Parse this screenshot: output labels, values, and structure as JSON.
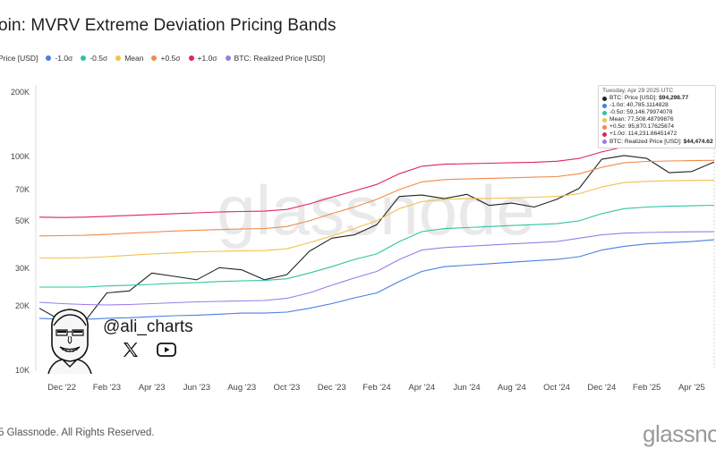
{
  "title": "oin: MVRV Extreme Deviation Pricing Bands",
  "tooltip": {
    "date": "Tuesday, Apr 29 2025 UTC",
    "rows": [
      {
        "label": "BTC: Price [USD]:",
        "value": "$94,298.77",
        "color": "#222222"
      },
      {
        "label": "-1.0σ: 40,785.1114828",
        "value": "",
        "color": "#4a7fe0"
      },
      {
        "label": "-0.5σ: 59,146.79974078",
        "value": "",
        "color": "#2ec4a4"
      },
      {
        "label": "Mean: 77,508.48799876",
        "value": "",
        "color": "#f2c14e"
      },
      {
        "label": "+0.5σ: 95,870.17625674",
        "value": "",
        "color": "#f08a4b"
      },
      {
        "label": "+1.0σ: 114,231.86451472",
        "value": "",
        "color": "#e0245e"
      },
      {
        "label": "BTC: Realized Price [USD]:",
        "value": "$44,474.62",
        "color": "#9b7be8"
      }
    ]
  },
  "watermark": "glassnode",
  "footer": "5 Glassnode. All Rights Reserved.",
  "brand": "glassnode",
  "overlay": {
    "handle": "@ali_charts",
    "icons": [
      "x-icon",
      "youtube-icon"
    ]
  },
  "chart_data": {
    "type": "line",
    "title": "oin: MVRV Extreme Deviation Pricing Bands",
    "y_scale": "log",
    "ylim": [
      10000,
      200000
    ],
    "y_ticks": [
      10000,
      20000,
      30000,
      50000,
      70000,
      100000,
      200000
    ],
    "y_tick_labels": [
      "10K",
      "20K",
      "30K",
      "50K",
      "70K",
      "100K",
      "200K"
    ],
    "x_tick_labels": [
      "Dec '22",
      "Feb '23",
      "Apr '23",
      "Jun '23",
      "Aug '23",
      "Oct '23",
      "Dec '23",
      "Feb '24",
      "Apr '24",
      "Jun '24",
      "Aug '24",
      "Oct '24",
      "Dec '24",
      "Feb '25",
      "Apr '25"
    ],
    "x": [
      "Nov '22",
      "Dec '22",
      "Jan '23",
      "Feb '23",
      "Mar '23",
      "Apr '23",
      "May '23",
      "Jun '23",
      "Jul '23",
      "Aug '23",
      "Sep '23",
      "Oct '23",
      "Nov '23",
      "Dec '23",
      "Jan '24",
      "Feb '24",
      "Mar '24",
      "Apr '24",
      "May '24",
      "Jun '24",
      "Jul '24",
      "Aug '24",
      "Sep '24",
      "Oct '24",
      "Nov '24",
      "Dec '24",
      "Jan '25",
      "Feb '25",
      "Mar '25",
      "Apr '25",
      "Apr 29 '25"
    ],
    "legend": [
      "Price [USD]",
      "-1.0σ",
      "-0.5σ",
      "Mean",
      "+0.5σ",
      "+1.0σ",
      "BTC: Realized Price [USD]"
    ],
    "legend_placement": "top-left",
    "grid": false,
    "series": [
      {
        "name": "Price [USD]",
        "color": "#222222",
        "width": 1.1,
        "values": [
          19500,
          17000,
          16800,
          23000,
          23500,
          28500,
          27500,
          26500,
          30200,
          29500,
          26500,
          28000,
          36000,
          41500,
          43000,
          48000,
          65000,
          66000,
          63500,
          66500,
          59000,
          60500,
          58000,
          63000,
          71000,
          97000,
          101000,
          98000,
          84000,
          85000,
          94300
        ]
      },
      {
        "name": "-1.0σ",
        "color": "#4a7fe0",
        "width": 1.1,
        "values": [
          17500,
          17300,
          17300,
          17500,
          17600,
          17800,
          18000,
          18100,
          18300,
          18500,
          18500,
          18700,
          19500,
          20500,
          21800,
          23000,
          26000,
          29000,
          30500,
          31000,
          31500,
          32000,
          32500,
          33000,
          34000,
          36500,
          38000,
          39000,
          39500,
          40000,
          40785
        ]
      },
      {
        "name": "-0.5σ",
        "color": "#2ec4a4",
        "width": 1.1,
        "values": [
          24500,
          24500,
          24500,
          24800,
          25000,
          25200,
          25500,
          25700,
          26000,
          26200,
          26300,
          26800,
          28500,
          30500,
          33000,
          35000,
          40000,
          44500,
          46000,
          46500,
          47000,
          47500,
          48000,
          48500,
          50000,
          54000,
          57000,
          58000,
          58500,
          58800,
          59147
        ]
      },
      {
        "name": "Mean",
        "color": "#f2c14e",
        "width": 1.1,
        "values": [
          33500,
          33500,
          33600,
          34000,
          34500,
          35000,
          35400,
          35800,
          36000,
          36200,
          36300,
          37000,
          39500,
          42500,
          46000,
          50000,
          57000,
          61500,
          63000,
          63500,
          63700,
          64000,
          64500,
          65000,
          67000,
          72000,
          75500,
          76500,
          77000,
          77200,
          77508
        ]
      },
      {
        "name": "+0.5σ",
        "color": "#f08a4b",
        "width": 1.1,
        "values": [
          42500,
          42600,
          42800,
          43200,
          43800,
          44300,
          44800,
          45200,
          45500,
          45800,
          46000,
          47000,
          50000,
          54000,
          58000,
          63000,
          70000,
          76000,
          78000,
          78500,
          79000,
          79500,
          80000,
          80500,
          83000,
          89000,
          93500,
          94800,
          95300,
          95600,
          95870
        ]
      },
      {
        "name": "+1.0σ",
        "color": "#e0245e",
        "width": 1.1,
        "values": [
          52000,
          51800,
          52000,
          52500,
          53000,
          53500,
          54000,
          54500,
          55000,
          55300,
          55500,
          56500,
          60000,
          64500,
          69000,
          74000,
          83000,
          90000,
          92000,
          92500,
          93000,
          93500,
          94000,
          95000,
          98000,
          105000,
          111000,
          112500,
          113500,
          114000,
          114232
        ]
      },
      {
        "name": "BTC: Realized Price [USD]",
        "color": "#9b7be8",
        "width": 1.1,
        "values": [
          20800,
          20500,
          20300,
          20200,
          20300,
          20500,
          20700,
          20900,
          21000,
          21100,
          21200,
          21700,
          23000,
          25000,
          27000,
          29000,
          33000,
          36500,
          37500,
          38000,
          38500,
          39000,
          39500,
          40000,
          41500,
          43000,
          43800,
          44100,
          44300,
          44400,
          44475
        ]
      }
    ]
  }
}
